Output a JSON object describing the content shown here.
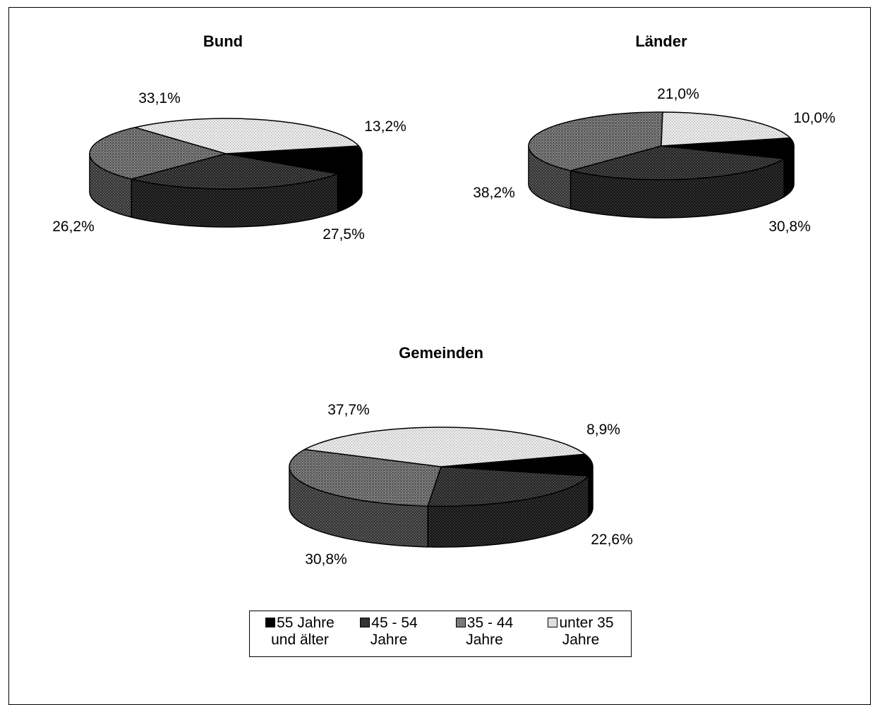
{
  "chart_data": [
    {
      "type": "pie",
      "title": "Bund",
      "slices": [
        {
          "label": "55 Jahre und älter",
          "value": 13.2,
          "text": "13,2%"
        },
        {
          "label": "45 - 54 Jahre",
          "value": 27.5,
          "text": "27,5%"
        },
        {
          "label": "35 - 44 Jahre",
          "value": 26.2,
          "text": "26,2%"
        },
        {
          "label": "unter 35 Jahre",
          "value": 33.1,
          "text": "33,1%"
        }
      ]
    },
    {
      "type": "pie",
      "title": "Länder",
      "slices": [
        {
          "label": "55 Jahre und älter",
          "value": 10.0,
          "text": "10,0%"
        },
        {
          "label": "45 - 54 Jahre",
          "value": 30.8,
          "text": "30,8%"
        },
        {
          "label": "35 - 44 Jahre",
          "value": 38.2,
          "text": "38,2%"
        },
        {
          "label": "unter 35 Jahre",
          "value": 21.0,
          "text": "21,0%"
        }
      ]
    },
    {
      "type": "pie",
      "title": "Gemeinden",
      "slices": [
        {
          "label": "55 Jahre und älter",
          "value": 8.9,
          "text": "8,9%"
        },
        {
          "label": "45 - 54 Jahre",
          "value": 22.6,
          "text": "22,6%"
        },
        {
          "label": "35 - 44 Jahre",
          "value": 30.8,
          "text": "30,8%"
        },
        {
          "label": "unter 35 Jahre",
          "value": 37.7,
          "text": "37,7%"
        }
      ]
    }
  ],
  "legend": {
    "placement": "bottom",
    "items": [
      {
        "line1": "55 Jahre",
        "line2": "und älter",
        "fill": "#000000"
      },
      {
        "line1": "45 - 54",
        "line2": "Jahre",
        "fill": "#333333"
      },
      {
        "line1": "35 - 44",
        "line2": "Jahre",
        "fill": "#7a7a7a"
      },
      {
        "line1": "unter 35",
        "line2": "Jahre",
        "fill": "#dedede"
      }
    ]
  },
  "colors": {
    "s55": "#000000",
    "s45": "#333333",
    "s35": "#7a7a7a",
    "under35": "#dedede"
  }
}
